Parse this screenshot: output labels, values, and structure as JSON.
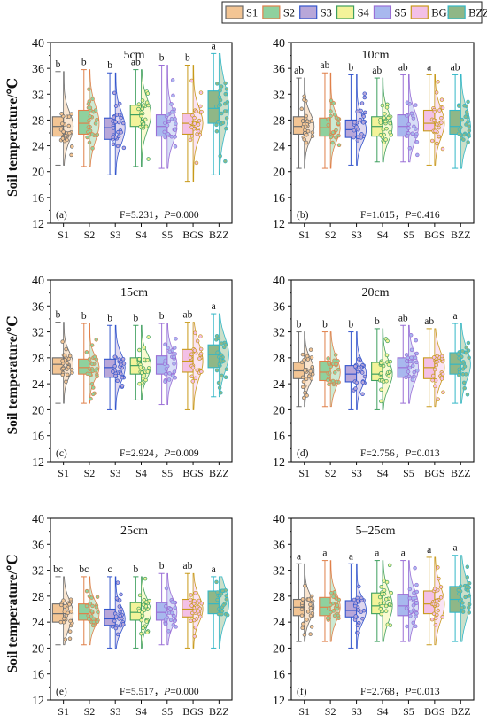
{
  "legend": [
    {
      "label": "S1",
      "fill": "#f3c594",
      "stroke": "#6b6b6b"
    },
    {
      "label": "S2",
      "fill": "#8fd19e",
      "stroke": "#e0804a"
    },
    {
      "label": "S3",
      "fill": "#b8a7d9",
      "stroke": "#3355cc"
    },
    {
      "label": "S4",
      "fill": "#f3f39a",
      "stroke": "#3f9f5f"
    },
    {
      "label": "S5",
      "fill": "#a8b8ee",
      "stroke": "#9a6fd6"
    },
    {
      "label": "BGS",
      "fill": "#f3c0e6",
      "stroke": "#c89a1a"
    },
    {
      "label": "BZZ",
      "fill": "#8fb787",
      "stroke": "#33b7c7"
    }
  ],
  "ylabel": "Soil temperature/℃",
  "chart_data": [
    {
      "type": "box",
      "panel": "(a)",
      "title": "5cm",
      "categories": [
        "S1",
        "S2",
        "S3",
        "S4",
        "S5",
        "BGS",
        "BZZ"
      ],
      "ylim": [
        12,
        40
      ],
      "yticks": [
        12,
        16,
        20,
        24,
        28,
        32,
        36,
        40
      ],
      "q1": [
        25.5,
        25.8,
        25.0,
        27.0,
        25.5,
        25.8,
        27.5
      ],
      "median": [
        27.0,
        27.5,
        26.8,
        28.8,
        27.0,
        27.5,
        29.8
      ],
      "q3": [
        28.5,
        29.5,
        28.3,
        30.3,
        28.8,
        29.0,
        32.5
      ],
      "min": [
        21.0,
        20.8,
        19.5,
        20.8,
        20.5,
        18.5,
        19.5
      ],
      "max": [
        35.5,
        35.8,
        35.3,
        35.8,
        36.5,
        36.5,
        38.3
      ],
      "sig": [
        "b",
        "b",
        "b",
        "ab",
        "b",
        "b",
        "a"
      ],
      "stat": "F=5.231，P=0.000"
    },
    {
      "type": "box",
      "panel": "(b)",
      "title": "10cm",
      "categories": [
        "S1",
        "S2",
        "S3",
        "S4",
        "S5",
        "BGS",
        "BZZ"
      ],
      "ylim": [
        12,
        40
      ],
      "yticks": [
        12,
        16,
        20,
        24,
        28,
        32,
        36,
        40
      ],
      "q1": [
        25.8,
        25.5,
        25.3,
        25.5,
        25.5,
        26.3,
        25.8
      ],
      "median": [
        27.0,
        26.8,
        26.5,
        27.0,
        27.0,
        27.5,
        27.0
      ],
      "q3": [
        28.5,
        28.3,
        28.0,
        28.5,
        28.8,
        29.5,
        29.5
      ],
      "min": [
        20.5,
        20.5,
        21.0,
        21.5,
        21.5,
        21.0,
        20.5
      ],
      "max": [
        34.5,
        35.3,
        35.0,
        34.5,
        35.0,
        35.0,
        35.0
      ],
      "sig": [
        "ab",
        "ab",
        "b",
        "ab",
        "ab",
        "a",
        "ab"
      ],
      "stat": "F=1.015，P=0.416"
    },
    {
      "type": "box",
      "panel": "(c)",
      "title": "15cm",
      "categories": [
        "S1",
        "S2",
        "S3",
        "S4",
        "S5",
        "BGS",
        "BZZ"
      ],
      "ylim": [
        12,
        40
      ],
      "yticks": [
        12,
        16,
        20,
        24,
        28,
        32,
        36,
        40
      ],
      "q1": [
        25.5,
        25.5,
        25.0,
        25.5,
        25.5,
        25.8,
        26.5
      ],
      "median": [
        27.0,
        26.5,
        26.5,
        26.8,
        27.0,
        27.5,
        28.5
      ],
      "q3": [
        28.0,
        27.8,
        27.8,
        28.0,
        28.3,
        29.3,
        30.0
      ],
      "min": [
        21.0,
        21.0,
        20.0,
        21.5,
        20.8,
        20.0,
        22.0
      ],
      "max": [
        33.5,
        33.3,
        33.0,
        33.0,
        33.3,
        33.5,
        34.8
      ],
      "sig": [
        "b",
        "b",
        "b",
        "b",
        "b",
        "ab",
        "a"
      ],
      "stat": "F=2.924，P=0.009"
    },
    {
      "type": "box",
      "panel": "(d)",
      "title": "20cm",
      "categories": [
        "S1",
        "S2",
        "S3",
        "S4",
        "S5",
        "BGS",
        "BZZ"
      ],
      "ylim": [
        12,
        40
      ],
      "yticks": [
        12,
        16,
        20,
        24,
        28,
        32,
        36,
        40
      ],
      "q1": [
        24.8,
        24.5,
        24.3,
        24.5,
        25.0,
        24.8,
        25.5
      ],
      "median": [
        26.0,
        25.8,
        25.5,
        25.5,
        26.5,
        26.5,
        27.0
      ],
      "q3": [
        27.3,
        27.5,
        26.8,
        27.3,
        28.0,
        28.0,
        28.8
      ],
      "min": [
        20.5,
        20.5,
        20.0,
        20.0,
        21.0,
        20.5,
        21.0
      ],
      "max": [
        32.0,
        32.0,
        32.0,
        32.5,
        33.0,
        32.5,
        33.3
      ],
      "sig": [
        "b",
        "b",
        "b",
        "b",
        "ab",
        "ab",
        "a"
      ],
      "stat": "F=2.756，P=0.013"
    },
    {
      "type": "box",
      "panel": "(e)",
      "title": "25cm",
      "categories": [
        "S1",
        "S2",
        "S3",
        "S4",
        "S5",
        "BGS",
        "BZZ"
      ],
      "ylim": [
        12,
        40
      ],
      "yticks": [
        12,
        16,
        20,
        24,
        28,
        32,
        36,
        40
      ],
      "q1": [
        24.0,
        24.3,
        23.5,
        24.3,
        24.3,
        24.8,
        25.3
      ],
      "median": [
        25.3,
        25.3,
        24.5,
        25.5,
        25.5,
        26.0,
        26.8
      ],
      "q3": [
        26.8,
        26.8,
        26.0,
        27.0,
        27.0,
        27.5,
        28.8
      ],
      "min": [
        20.5,
        20.5,
        20.0,
        20.0,
        20.5,
        20.0,
        20.0
      ],
      "max": [
        31.0,
        31.0,
        31.0,
        31.0,
        31.5,
        31.5,
        31.0
      ],
      "sig": [
        "bc",
        "bc",
        "c",
        "b",
        "b",
        "ab",
        "a"
      ],
      "stat": "F=5.517，P=0.000"
    },
    {
      "type": "box",
      "panel": "(f)",
      "title": "5–25cm",
      "categories": [
        "S1",
        "S2",
        "S3",
        "S4",
        "S5",
        "BGS",
        "BZZ"
      ],
      "ylim": [
        12,
        40
      ],
      "yticks": [
        12,
        16,
        20,
        24,
        28,
        32,
        36,
        40
      ],
      "q1": [
        25.0,
        25.0,
        24.8,
        25.3,
        25.0,
        25.3,
        25.5
      ],
      "median": [
        26.3,
        26.3,
        25.8,
        26.5,
        26.5,
        26.8,
        27.5
      ],
      "q3": [
        27.5,
        27.8,
        27.3,
        28.5,
        28.3,
        28.8,
        29.5
      ],
      "min": [
        21.0,
        21.0,
        20.0,
        21.0,
        21.0,
        20.5,
        21.0
      ],
      "max": [
        33.0,
        33.5,
        33.0,
        33.5,
        33.5,
        34.0,
        34.3
      ],
      "sig": [
        "a",
        "a",
        "a",
        "a",
        "a",
        "a",
        "a"
      ],
      "stat": "F=2.768，P=0.013"
    }
  ]
}
